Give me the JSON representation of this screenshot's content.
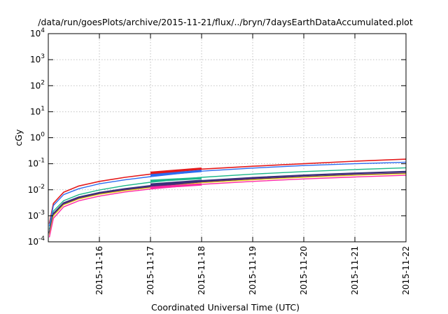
{
  "chart_data": {
    "type": "line",
    "title": "/data/run/goesPlots/archive/2015-11-21/flux/../bryn/7daysEarthDataAccumulated.plot",
    "xlabel": "Coordinated Universal Time (UTC)",
    "ylabel": "cGy",
    "yscale": "log",
    "ylim": [
      0.0001,
      10000
    ],
    "y_ticks": [
      {
        "value": 0.0001,
        "base": "10",
        "exp": "-4"
      },
      {
        "value": 0.001,
        "base": "10",
        "exp": "-3"
      },
      {
        "value": 0.01,
        "base": "10",
        "exp": "-2"
      },
      {
        "value": 0.1,
        "base": "10",
        "exp": "-1"
      },
      {
        "value": 1,
        "base": "10",
        "exp": "0"
      },
      {
        "value": 10,
        "base": "10",
        "exp": "1"
      },
      {
        "value": 100,
        "base": "10",
        "exp": "2"
      },
      {
        "value": 1000,
        "base": "10",
        "exp": "3"
      },
      {
        "value": 10000,
        "base": "10",
        "exp": "4"
      }
    ],
    "xlim": [
      "2015-11-15",
      "2015-11-22"
    ],
    "x_ticks": [
      "2015-11-16",
      "2015-11-17",
      "2015-11-18",
      "2015-11-19",
      "2015-11-20",
      "2015-11-21",
      "2015-11-22"
    ],
    "grid": true,
    "series": [
      {
        "color": "#e41a1c",
        "width": 1.6,
        "x": [
          0.02,
          0.1,
          0.3,
          0.6,
          1,
          1.5,
          2,
          3,
          4,
          5,
          6,
          7
        ],
        "y": [
          0.0005,
          0.003,
          0.008,
          0.014,
          0.021,
          0.03,
          0.04,
          0.062,
          0.08,
          0.1,
          0.125,
          0.15
        ]
      },
      {
        "color": "#2b6cf0",
        "width": 1.4,
        "x": [
          0.02,
          0.1,
          0.3,
          0.6,
          1,
          1.5,
          2,
          3,
          4,
          5,
          6,
          7
        ],
        "y": [
          0.0004,
          0.0025,
          0.0065,
          0.011,
          0.017,
          0.024,
          0.032,
          0.052,
          0.068,
          0.085,
          0.1,
          0.115
        ]
      },
      {
        "color": "#1db88a",
        "width": 1.4,
        "x": [
          0.02,
          0.1,
          0.3,
          0.6,
          1,
          1.5,
          2,
          3,
          4,
          5,
          6,
          7
        ],
        "y": [
          0.0003,
          0.0015,
          0.0038,
          0.0065,
          0.0098,
          0.0145,
          0.0195,
          0.03,
          0.04,
          0.05,
          0.06,
          0.07
        ]
      },
      {
        "color": "#3a2f7a",
        "width": 2.2,
        "x": [
          0.02,
          0.1,
          0.3,
          0.6,
          1,
          1.5,
          2,
          3,
          4,
          5,
          6,
          7
        ],
        "y": [
          0.00022,
          0.0012,
          0.0031,
          0.0052,
          0.0077,
          0.0108,
          0.0142,
          0.022,
          0.029,
          0.036,
          0.043,
          0.05
        ]
      },
      {
        "color": "#5a2d6e",
        "width": 1.6,
        "x": [
          0.02,
          0.1,
          0.3,
          0.6,
          1,
          1.5,
          2,
          3,
          4,
          5,
          6,
          7
        ],
        "y": [
          0.0002,
          0.0011,
          0.0028,
          0.0047,
          0.007,
          0.0098,
          0.0128,
          0.02,
          0.026,
          0.032,
          0.038,
          0.044
        ]
      },
      {
        "color": "#f0dc1a",
        "width": 1.2,
        "x": [
          0.02,
          0.1,
          0.3,
          0.6,
          1,
          1.5,
          2,
          3,
          4,
          5,
          6,
          7
        ],
        "y": [
          0.00018,
          0.001,
          0.0026,
          0.0044,
          0.0066,
          0.0092,
          0.012,
          0.0185,
          0.024,
          0.03,
          0.036,
          0.041
        ]
      },
      {
        "color": "#ff2aa6",
        "width": 1.4,
        "x": [
          0.02,
          0.1,
          0.3,
          0.6,
          1,
          1.5,
          2,
          3,
          4,
          5,
          6,
          7
        ],
        "y": [
          0.00015,
          0.0008,
          0.0022,
          0.0038,
          0.0057,
          0.0082,
          0.0107,
          0.0162,
          0.021,
          0.026,
          0.031,
          0.036
        ]
      },
      {
        "color": "#e41a1c",
        "width": 3.2,
        "x": [
          2,
          3
        ],
        "y": [
          0.045,
          0.065
        ]
      },
      {
        "color": "#2b6cf0",
        "width": 3.2,
        "x": [
          2,
          3
        ],
        "y": [
          0.036,
          0.053
        ]
      },
      {
        "color": "#1db88a",
        "width": 3.2,
        "x": [
          2,
          3
        ],
        "y": [
          0.022,
          0.028
        ]
      },
      {
        "color": "#3a2f7a",
        "width": 3.2,
        "x": [
          2,
          3
        ],
        "y": [
          0.016,
          0.022
        ]
      },
      {
        "color": "#ff2aa6",
        "width": 3.2,
        "x": [
          2,
          3
        ],
        "y": [
          0.012,
          0.016
        ]
      }
    ]
  }
}
